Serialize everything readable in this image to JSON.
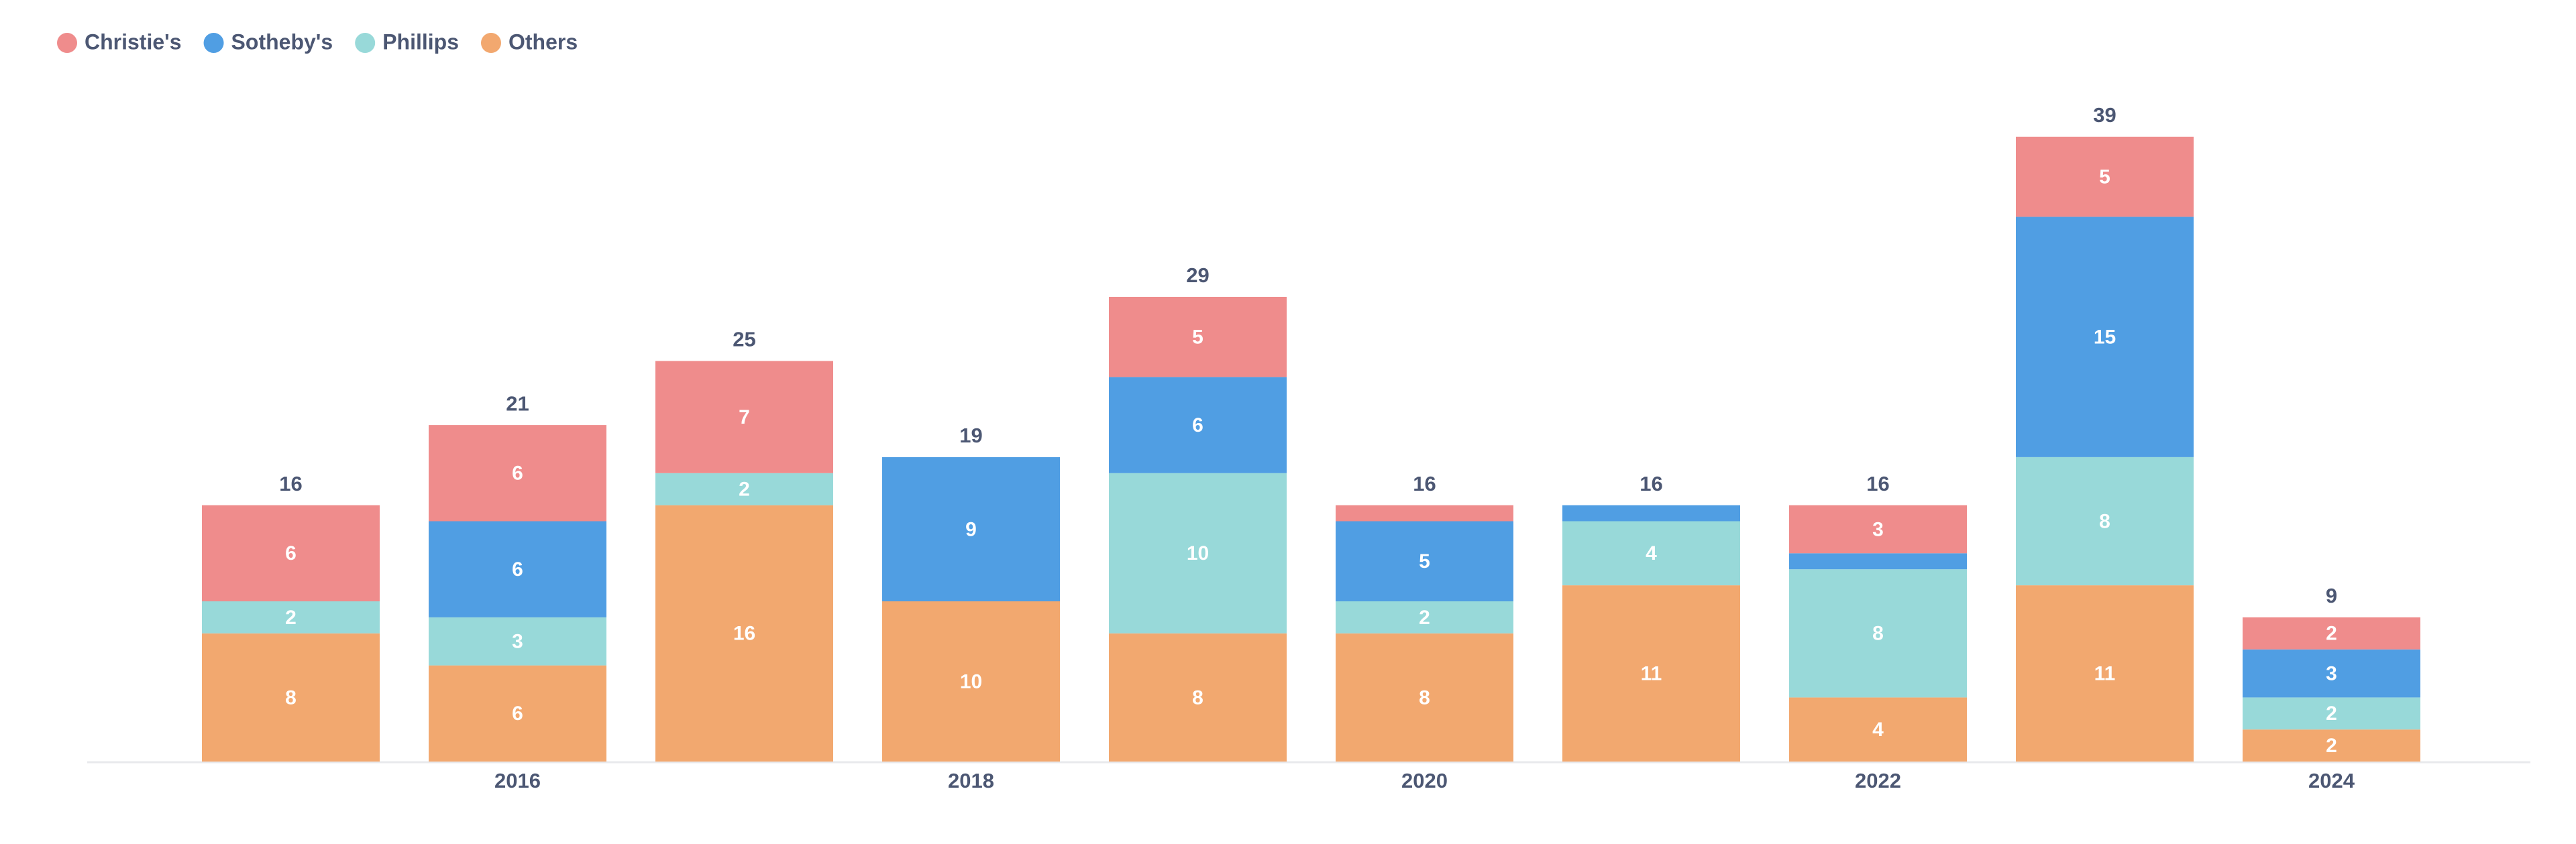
{
  "chart_data": {
    "type": "stacked_bar",
    "categories": [
      null,
      "2016",
      null,
      "2018",
      null,
      "2020",
      null,
      "2022",
      null,
      "2024"
    ],
    "series": [
      {
        "name": "Christie's",
        "color": "#ef8c8c",
        "values": [
          6,
          6,
          7,
          0,
          5,
          1,
          0,
          3,
          5,
          2
        ]
      },
      {
        "name": "Sotheby's",
        "color": "#509ee3",
        "values": [
          0,
          6,
          0,
          9,
          6,
          5,
          1,
          1,
          15,
          3
        ]
      },
      {
        "name": "Phillips",
        "color": "#98d9d9",
        "values": [
          2,
          3,
          2,
          0,
          10,
          2,
          4,
          8,
          8,
          2
        ]
      },
      {
        "name": "Others",
        "color": "#f2a86f",
        "values": [
          8,
          6,
          16,
          10,
          8,
          8,
          11,
          4,
          11,
          2
        ]
      }
    ],
    "totals": [
      16,
      21,
      25,
      19,
      29,
      16,
      16,
      16,
      39,
      9
    ],
    "legend": "top-left"
  }
}
